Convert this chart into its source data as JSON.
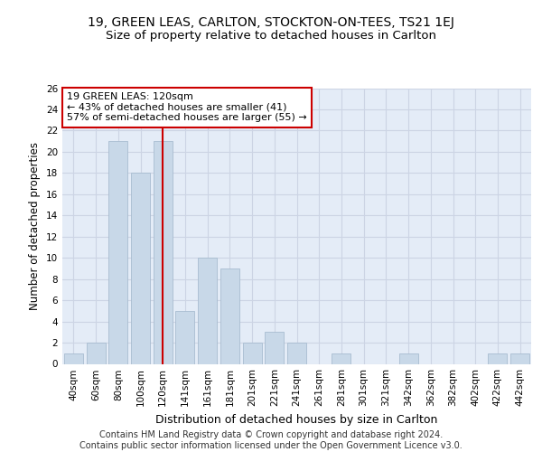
{
  "title1": "19, GREEN LEAS, CARLTON, STOCKTON-ON-TEES, TS21 1EJ",
  "title2": "Size of property relative to detached houses in Carlton",
  "xlabel": "Distribution of detached houses by size in Carlton",
  "ylabel": "Number of detached properties",
  "bar_labels": [
    "40sqm",
    "60sqm",
    "80sqm",
    "100sqm",
    "120sqm",
    "141sqm",
    "161sqm",
    "181sqm",
    "201sqm",
    "221sqm",
    "241sqm",
    "261sqm",
    "281sqm",
    "301sqm",
    "321sqm",
    "342sqm",
    "362sqm",
    "382sqm",
    "402sqm",
    "422sqm",
    "442sqm"
  ],
  "bar_values": [
    1,
    2,
    21,
    18,
    21,
    5,
    10,
    9,
    2,
    3,
    2,
    0,
    1,
    0,
    0,
    1,
    0,
    0,
    0,
    1,
    1
  ],
  "bar_color": "#c8d8e8",
  "bar_edge_color": "#a8bcd0",
  "highlight_index": 4,
  "highlight_line_color": "#cc0000",
  "annotation_text": "19 GREEN LEAS: 120sqm\n← 43% of detached houses are smaller (41)\n57% of semi-detached houses are larger (55) →",
  "annotation_box_color": "#cc0000",
  "ylim": [
    0,
    26
  ],
  "yticks": [
    0,
    2,
    4,
    6,
    8,
    10,
    12,
    14,
    16,
    18,
    20,
    22,
    24,
    26
  ],
  "grid_color": "#ccd4e4",
  "background_color": "#e4ecf7",
  "footer_text": "Contains HM Land Registry data © Crown copyright and database right 2024.\nContains public sector information licensed under the Open Government Licence v3.0.",
  "title1_fontsize": 10,
  "title2_fontsize": 9.5,
  "xlabel_fontsize": 9,
  "ylabel_fontsize": 8.5,
  "tick_fontsize": 7.5,
  "footer_fontsize": 7
}
